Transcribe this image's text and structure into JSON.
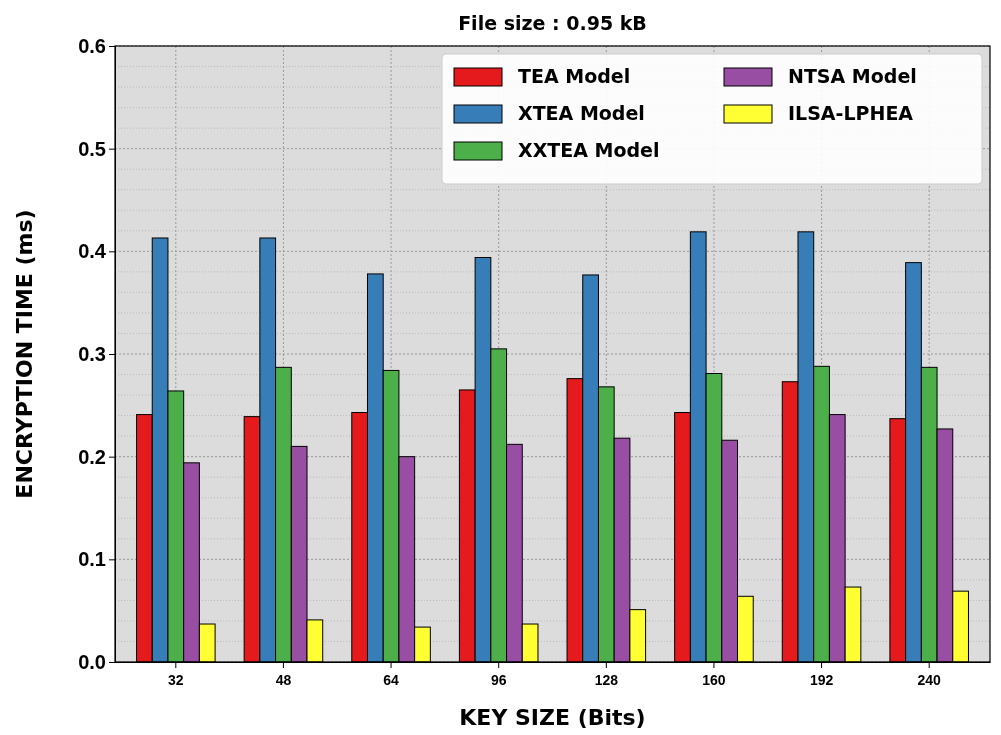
{
  "chart_data": {
    "type": "bar",
    "title": "File size : 0.95 kB",
    "xlabel": "KEY SIZE (Bits)",
    "ylabel": "ENCRYPTION TIME (ms)",
    "categories": [
      "32",
      "48",
      "64",
      "96",
      "128",
      "160",
      "192",
      "240"
    ],
    "series": [
      {
        "name": "TEA Model",
        "color": "#e41a1c",
        "values": [
          0.241,
          0.239,
          0.243,
          0.265,
          0.276,
          0.243,
          0.273,
          0.237
        ]
      },
      {
        "name": "XTEA Model",
        "color": "#377eb8",
        "values": [
          0.413,
          0.413,
          0.378,
          0.394,
          0.377,
          0.419,
          0.419,
          0.389
        ]
      },
      {
        "name": "XXTEA Model",
        "color": "#4daf4a",
        "values": [
          0.264,
          0.287,
          0.284,
          0.305,
          0.268,
          0.281,
          0.288,
          0.287
        ]
      },
      {
        "name": "NTSA Model",
        "color": "#984ea3",
        "values": [
          0.194,
          0.21,
          0.2,
          0.212,
          0.218,
          0.216,
          0.241,
          0.227
        ]
      },
      {
        "name": "ILSA-LPHEA",
        "color": "#ffff33",
        "values": [
          0.037,
          0.041,
          0.034,
          0.037,
          0.051,
          0.064,
          0.073,
          0.069
        ]
      }
    ],
    "ylim": [
      0,
      0.6
    ],
    "yticks": [
      {
        "value": 0,
        "label": "0.0"
      },
      0.1,
      0.2,
      0.3,
      0.4,
      0.5,
      0.6
    ],
    "grid": true,
    "legend": "top right"
  }
}
